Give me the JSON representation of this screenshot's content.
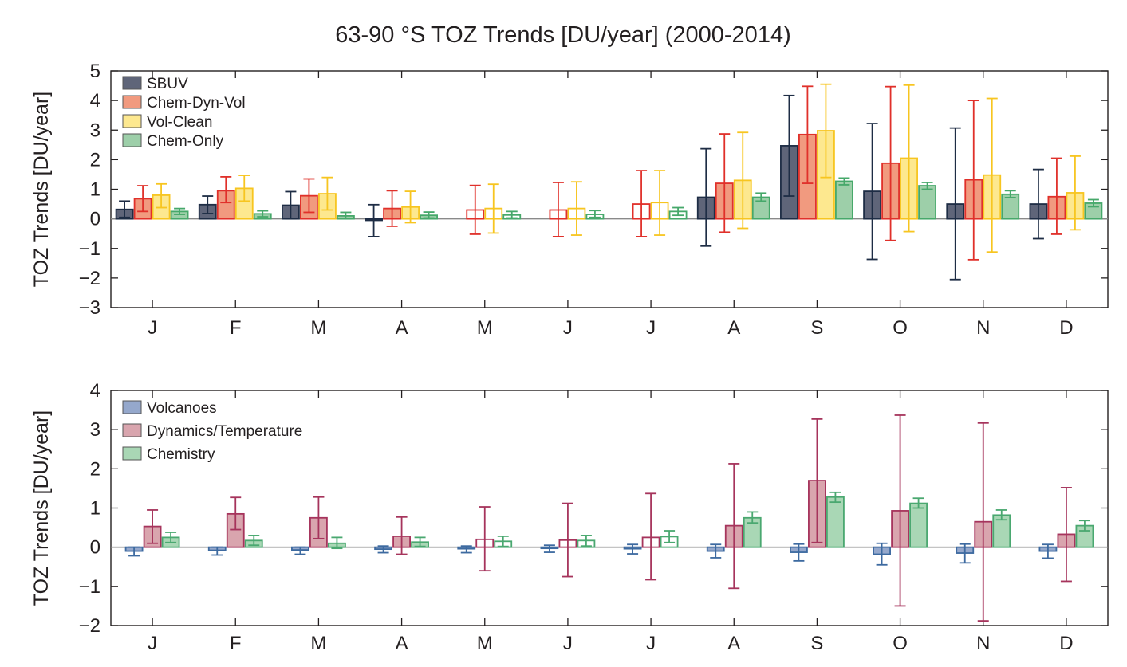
{
  "figure_title": "63-90 °S TOZ Trends [DU/year] (2000-2014)",
  "chart_data": [
    {
      "type": "bar",
      "panel": "top",
      "title": "63-90 °S TOZ Trends [DU/year] (2000-2014)",
      "xlabel": "",
      "ylabel": "TOZ Trends [DU/year]",
      "ylim": [
        -3,
        5
      ],
      "yticks": [
        5,
        4,
        3,
        2,
        1,
        0,
        -1,
        -2,
        -3
      ],
      "ytick_labels": [
        "5",
        "4",
        "3",
        "2",
        "1",
        "0",
        "-1",
        "-2",
        "-3"
      ],
      "categories": [
        "J",
        "F",
        "M",
        "A",
        "M",
        "J",
        "J",
        "A",
        "S",
        "O",
        "N",
        "D"
      ],
      "grid": false,
      "legend_position": "top-left",
      "series": [
        {
          "name": "SBUV",
          "fill": "#5f6579",
          "stroke": "#1e2d45",
          "values": [
            0.32,
            0.48,
            0.46,
            -0.05,
            null,
            null,
            null,
            0.73,
            2.47,
            0.93,
            0.5,
            0.5
          ],
          "err_low": [
            0.05,
            0.18,
            0.0,
            -0.6,
            null,
            null,
            null,
            -0.92,
            0.77,
            -1.37,
            -2.05,
            -0.67
          ],
          "err_high": [
            0.6,
            0.77,
            0.92,
            0.48,
            null,
            null,
            null,
            2.37,
            4.17,
            3.22,
            3.07,
            1.67
          ],
          "filled": [
            true,
            true,
            true,
            true,
            false,
            false,
            false,
            true,
            true,
            true,
            true,
            true
          ]
        },
        {
          "name": "Chem-Dyn-Vol",
          "fill": "#f19a7f",
          "stroke": "#e0302a",
          "values": [
            0.68,
            0.95,
            0.78,
            0.35,
            0.3,
            0.3,
            0.5,
            1.2,
            2.85,
            1.88,
            1.32,
            0.75
          ],
          "err_low": [
            0.25,
            0.55,
            0.22,
            -0.25,
            -0.52,
            -0.6,
            -0.6,
            -0.45,
            1.2,
            -0.73,
            -1.38,
            -0.52
          ],
          "err_high": [
            1.12,
            1.42,
            1.35,
            0.95,
            1.13,
            1.23,
            1.63,
            2.87,
            4.48,
            4.47,
            4.0,
            2.05
          ],
          "filled": [
            true,
            true,
            true,
            true,
            false,
            false,
            false,
            true,
            true,
            true,
            true,
            true
          ]
        },
        {
          "name": "Vol-Clean",
          "fill": "#fde88f",
          "stroke": "#f7c520",
          "values": [
            0.8,
            1.03,
            0.85,
            0.4,
            0.35,
            0.35,
            0.55,
            1.3,
            2.98,
            2.05,
            1.48,
            0.88
          ],
          "err_low": [
            0.38,
            0.6,
            0.3,
            -0.13,
            -0.48,
            -0.55,
            -0.55,
            -0.32,
            1.4,
            -0.43,
            -1.12,
            -0.37
          ],
          "err_high": [
            1.18,
            1.47,
            1.4,
            0.93,
            1.17,
            1.25,
            1.63,
            2.92,
            4.55,
            4.52,
            4.07,
            2.12
          ],
          "filled": [
            true,
            true,
            true,
            true,
            false,
            false,
            false,
            true,
            true,
            true,
            true,
            true
          ]
        },
        {
          "name": "Chem-Only",
          "fill": "#9dcfa9",
          "stroke": "#46a86a",
          "values": [
            0.25,
            0.17,
            0.1,
            0.12,
            0.13,
            0.15,
            0.25,
            0.73,
            1.27,
            1.12,
            0.83,
            0.53
          ],
          "err_low": [
            0.15,
            0.07,
            0.0,
            0.03,
            0.03,
            0.05,
            0.12,
            0.6,
            1.15,
            1.0,
            0.72,
            0.41
          ],
          "err_high": [
            0.35,
            0.27,
            0.22,
            0.23,
            0.25,
            0.28,
            0.38,
            0.87,
            1.38,
            1.23,
            0.95,
            0.65
          ],
          "filled": [
            true,
            true,
            true,
            true,
            false,
            false,
            false,
            true,
            true,
            true,
            true,
            true
          ]
        }
      ]
    },
    {
      "type": "bar",
      "panel": "bottom",
      "title": "",
      "xlabel": "",
      "ylabel": "TOZ Trends [DU/year]",
      "ylim": [
        -2,
        4
      ],
      "yticks": [
        4,
        3,
        2,
        1,
        0,
        -1,
        -2
      ],
      "ytick_labels": [
        "4",
        "3",
        "2",
        "1",
        "0",
        "-1",
        "-2"
      ],
      "categories": [
        "J",
        "F",
        "M",
        "A",
        "M",
        "J",
        "J",
        "A",
        "S",
        "O",
        "N",
        "D"
      ],
      "grid": false,
      "legend_position": "top-left",
      "series": [
        {
          "name": "Volcanoes",
          "fill": "#95a8cc",
          "stroke": "#3d6aa0",
          "values": [
            -0.1,
            -0.08,
            -0.07,
            -0.05,
            -0.04,
            -0.03,
            -0.04,
            -0.1,
            -0.13,
            -0.18,
            -0.15,
            -0.1
          ],
          "err_low": [
            -0.22,
            -0.2,
            -0.18,
            -0.14,
            -0.14,
            -0.13,
            -0.17,
            -0.27,
            -0.35,
            -0.45,
            -0.4,
            -0.28
          ],
          "err_high": [
            0.0,
            0.0,
            0.0,
            0.03,
            0.03,
            0.05,
            0.07,
            0.07,
            0.08,
            0.1,
            0.08,
            0.07
          ],
          "filled": [
            true,
            true,
            true,
            true,
            true,
            true,
            true,
            true,
            true,
            true,
            true,
            true
          ]
        },
        {
          "name": "Dynamics/Temperature",
          "fill": "#d9a5ae",
          "stroke": "#a6345c",
          "values": [
            0.53,
            0.85,
            0.75,
            0.28,
            0.2,
            0.18,
            0.25,
            0.55,
            1.7,
            0.93,
            0.65,
            0.33
          ],
          "err_low": [
            0.1,
            0.45,
            0.22,
            -0.18,
            -0.6,
            -0.75,
            -0.83,
            -1.05,
            0.12,
            -1.5,
            -1.88,
            -0.87
          ],
          "err_high": [
            0.95,
            1.27,
            1.28,
            0.77,
            1.03,
            1.12,
            1.37,
            2.13,
            3.27,
            3.37,
            3.17,
            1.52
          ],
          "filled": [
            true,
            true,
            true,
            true,
            false,
            false,
            false,
            true,
            true,
            true,
            true,
            true
          ]
        },
        {
          "name": "Chemistry",
          "fill": "#a9d7b5",
          "stroke": "#4aa870",
          "values": [
            0.25,
            0.17,
            0.1,
            0.13,
            0.15,
            0.17,
            0.27,
            0.75,
            1.28,
            1.12,
            0.82,
            0.55
          ],
          "err_low": [
            0.12,
            0.05,
            -0.03,
            0.02,
            0.02,
            0.03,
            0.12,
            0.62,
            1.15,
            1.0,
            0.7,
            0.42
          ],
          "err_high": [
            0.38,
            0.3,
            0.25,
            0.25,
            0.28,
            0.3,
            0.42,
            0.9,
            1.4,
            1.25,
            0.95,
            0.68
          ],
          "filled": [
            true,
            true,
            true,
            true,
            false,
            false,
            false,
            true,
            true,
            true,
            true,
            true
          ]
        }
      ]
    }
  ]
}
